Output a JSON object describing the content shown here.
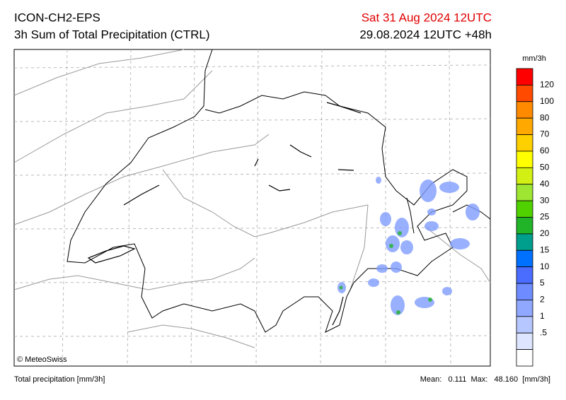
{
  "header": {
    "model": "ICON-CH2-EPS",
    "product": "3h Sum of Total Precipitation (CTRL)",
    "valid_time": "Sat 31 Aug 2024 12UTC",
    "run_time": "29.08.2024 12UTC +48h"
  },
  "legend": {
    "unit": "mm/3h",
    "levels": [
      "120",
      "100",
      "80",
      "70",
      "60",
      "50",
      "40",
      "30",
      "25",
      "20",
      "15",
      "10",
      "5",
      "2",
      "1",
      ".5"
    ],
    "colors": [
      "#ff0000",
      "#ff4a00",
      "#ff8a00",
      "#ffa800",
      "#ffd000",
      "#ffff00",
      "#d2f014",
      "#9ee632",
      "#50d200",
      "#22b428",
      "#009e8c",
      "#0070ff",
      "#4a6cff",
      "#6e8cff",
      "#90a8ff",
      "#b6c6ff",
      "#dde5ff",
      "#ffffff"
    ]
  },
  "copyright": "© MeteoSwiss",
  "footer": {
    "left": "Total precipitation [mm/3h]",
    "right": "Mean:   0.111  Max:   48.160  [mm/3h]"
  }
}
